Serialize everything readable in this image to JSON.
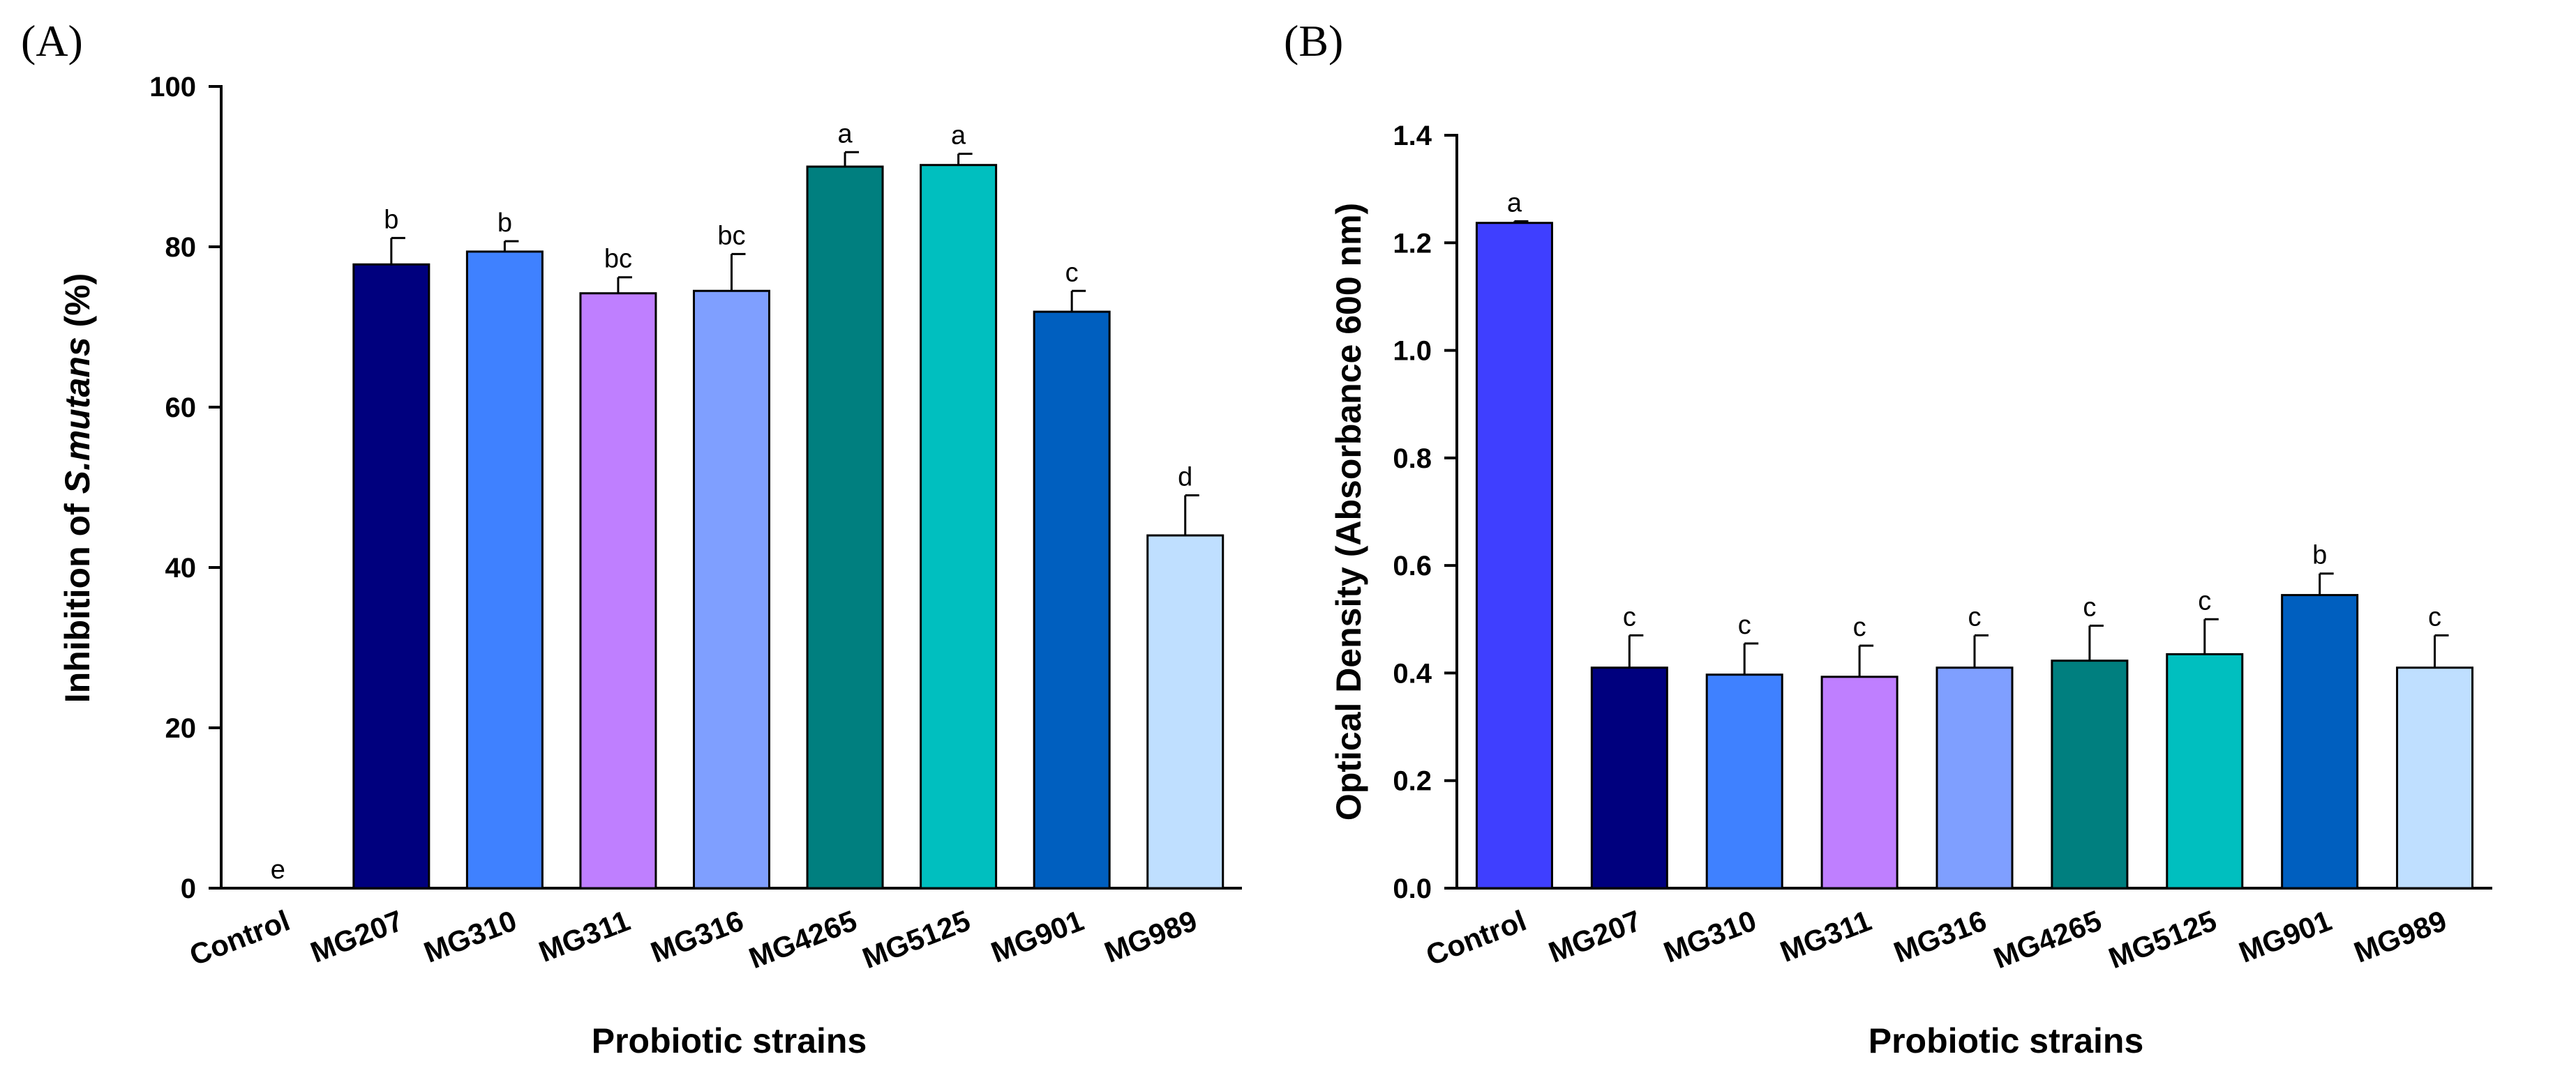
{
  "panels": {
    "a_label": "(A)",
    "b_label": "(B)"
  },
  "chart_data": [
    {
      "type": "bar",
      "panel": "(A)",
      "title": "",
      "xlabel": "Probiotic strains",
      "ylabel": "Inhibition of S.mutans (%)",
      "ylabel_prefix": "Inhibition of ",
      "ylabel_italic": "S.mutans",
      "ylabel_suffix": " (%)",
      "ylim": [
        0,
        100
      ],
      "yticks": [
        0,
        20,
        40,
        60,
        80,
        100
      ],
      "ytick_labels": [
        "0",
        "20",
        "40",
        "60",
        "80",
        "100"
      ],
      "categories": [
        "Control",
        "MG207",
        "MG310",
        "MG311",
        "MG316",
        "MG4265",
        "MG5125",
        "MG901",
        "MG989"
      ],
      "values": [
        0,
        77.8,
        79.4,
        74.2,
        74.5,
        90.0,
        90.2,
        71.9,
        44.0
      ],
      "errors": [
        0,
        3.3,
        1.3,
        2.0,
        4.6,
        1.8,
        1.4,
        2.6,
        5.0
      ],
      "significance": [
        "e",
        "b",
        "b",
        "bc",
        "bc",
        "a",
        "a",
        "c",
        "d"
      ],
      "colors": [
        "#ffffff",
        "#00007e",
        "#3f81ff",
        "#bf7fff",
        "#7f9fff",
        "#007f7f",
        "#00bfbf",
        "#005fbf",
        "#bfdfff"
      ]
    },
    {
      "type": "bar",
      "panel": "(B)",
      "title": "",
      "xlabel": "Probiotic strains",
      "ylabel": "Optical Density (Absorbance 600 nm)",
      "ylim": [
        0,
        1.4
      ],
      "yticks": [
        0,
        0.2,
        0.4,
        0.6,
        0.8,
        1.0,
        1.2,
        1.4
      ],
      "ytick_labels": [
        "0.0",
        "0.2",
        "0.4",
        "0.6",
        "0.8",
        "1.0",
        "1.2",
        "1.4"
      ],
      "categories": [
        "Control",
        "MG207",
        "MG310",
        "MG311",
        "MG316",
        "MG4265",
        "MG5125",
        "MG901",
        "MG989"
      ],
      "values": [
        1.237,
        0.41,
        0.397,
        0.393,
        0.41,
        0.423,
        0.435,
        0.545,
        0.41
      ],
      "errors": [
        0.003,
        0.06,
        0.058,
        0.058,
        0.06,
        0.065,
        0.065,
        0.04,
        0.06
      ],
      "significance": [
        "a",
        "c",
        "c",
        "c",
        "c",
        "c",
        "c",
        "b",
        "c"
      ],
      "colors": [
        "#3f3fff",
        "#00007e",
        "#3f81ff",
        "#bf7fff",
        "#7f9fff",
        "#007f7f",
        "#00bfbf",
        "#005fbf",
        "#bfdfff"
      ]
    }
  ]
}
